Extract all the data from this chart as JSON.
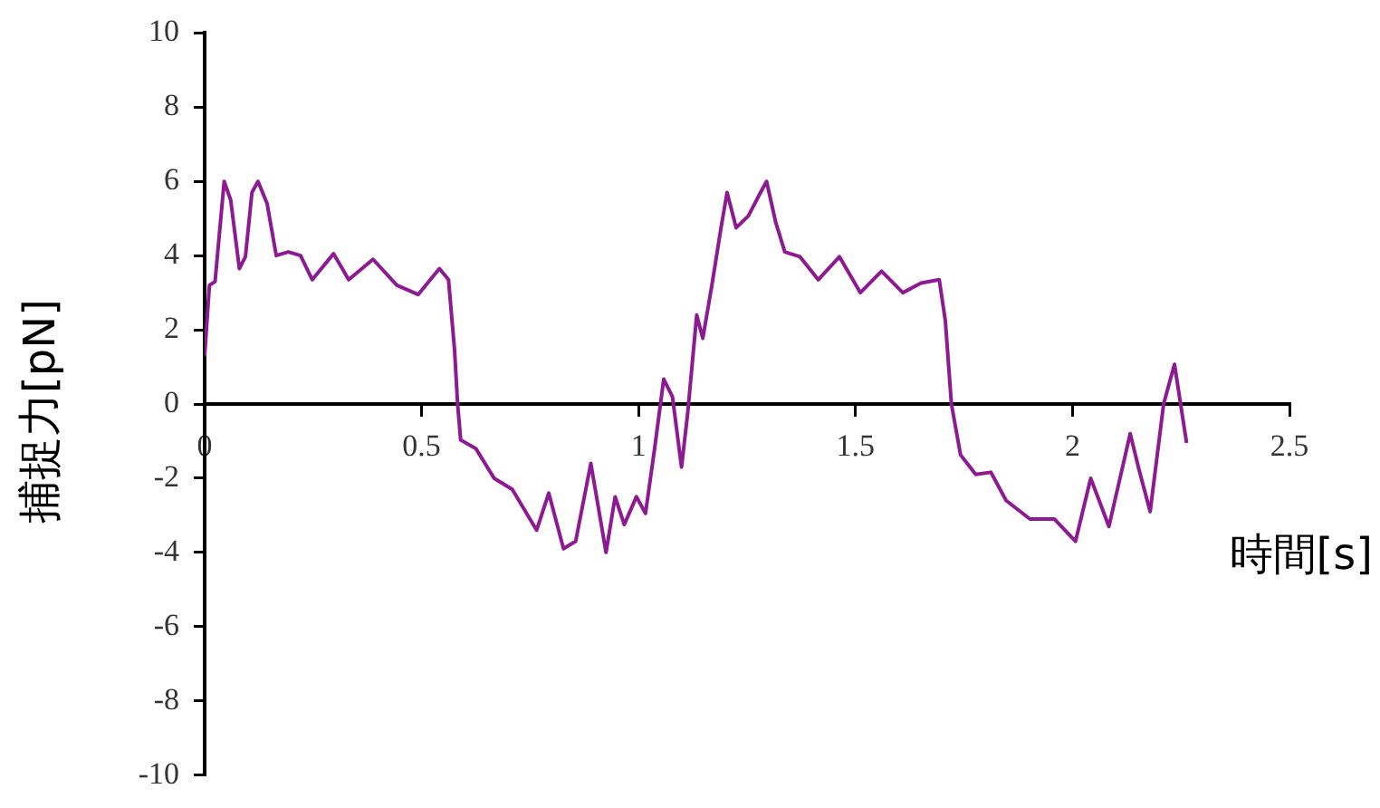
{
  "chart_data": {
    "type": "line",
    "xlabel": "時間[s]",
    "ylabel": "捕捉力[pN]",
    "xlim": [
      0,
      2.5
    ],
    "xticks": [
      0,
      0.5,
      1,
      1.5,
      2,
      2.5
    ],
    "ylim": [
      -10,
      10
    ],
    "yticks": [
      -10,
      -8,
      -6,
      -4,
      -2,
      0,
      2,
      4,
      6,
      8,
      10
    ],
    "grid": false,
    "legend": false,
    "marker": "none",
    "line_style": "solid",
    "series": [
      {
        "color": "#8e1a93",
        "x": [
          0,
          0.011,
          0.024,
          0.045,
          0.06,
          0.08,
          0.094,
          0.109,
          0.123,
          0.144,
          0.165,
          0.193,
          0.221,
          0.248,
          0.297,
          0.332,
          0.388,
          0.443,
          0.492,
          0.541,
          0.562,
          0.576,
          0.583,
          0.59,
          0.625,
          0.667,
          0.709,
          0.765,
          0.793,
          0.827,
          0.855,
          0.89,
          0.925,
          0.946,
          0.967,
          0.995,
          1.016,
          1.037,
          1.058,
          1.078,
          1.099,
          1.113,
          1.134,
          1.148,
          1.169,
          1.19,
          1.204,
          1.225,
          1.253,
          1.281,
          1.295,
          1.316,
          1.337,
          1.372,
          1.414,
          1.463,
          1.511,
          1.56,
          1.609,
          1.651,
          1.693,
          1.707,
          1.721,
          1.742,
          1.777,
          1.812,
          1.847,
          1.902,
          1.958,
          2.007,
          2.042,
          2.084,
          2.133,
          2.154,
          2.179,
          2.21,
          2.235,
          2.263
        ],
        "values": [
          1.3,
          3.2,
          3.3,
          6.0,
          5.5,
          3.65,
          3.97,
          5.7,
          6.0,
          5.4,
          4.0,
          4.1,
          4.0,
          3.35,
          4.05,
          3.35,
          3.9,
          3.2,
          2.95,
          3.65,
          3.35,
          1.45,
          0,
          -0.97,
          -1.2,
          -2.0,
          -2.3,
          -3.4,
          -2.4,
          -3.9,
          -3.7,
          -1.6,
          -4.0,
          -2.5,
          -3.25,
          -2.5,
          -2.95,
          -1.2,
          0.67,
          0.2,
          -1.7,
          -0.27,
          2.4,
          1.77,
          3.2,
          4.75,
          5.7,
          4.75,
          5.07,
          5.7,
          6.0,
          4.9,
          4.1,
          3.97,
          3.35,
          3.97,
          3.0,
          3.58,
          3.0,
          3.26,
          3.35,
          2.24,
          0,
          -1.37,
          -1.9,
          -1.84,
          -2.6,
          -3.1,
          -3.1,
          -3.7,
          -2.0,
          -3.3,
          -0.8,
          -1.8,
          -2.9,
          0,
          1.07,
          -1.05
        ]
      }
    ]
  }
}
